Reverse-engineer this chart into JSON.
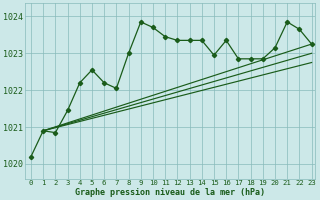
{
  "title": "Graphe pression niveau de la mer (hPa)",
  "bg_color": "#cce8e8",
  "grid_color": "#88bbbb",
  "line_color": "#1a5c1a",
  "x_min": 0,
  "x_max": 23,
  "y_min": 1019.6,
  "y_max": 1024.35,
  "yticks": [
    1020,
    1021,
    1022,
    1023,
    1024
  ],
  "xticks": [
    0,
    1,
    2,
    3,
    4,
    5,
    6,
    7,
    8,
    9,
    10,
    11,
    12,
    13,
    14,
    15,
    16,
    17,
    18,
    19,
    20,
    21,
    22,
    23
  ],
  "jagged_x": [
    0,
    1,
    2,
    3,
    4,
    5,
    6,
    7,
    8,
    9,
    10,
    11,
    12,
    13,
    14,
    15,
    16,
    17,
    18,
    19,
    20,
    21,
    22,
    23
  ],
  "jagged_y": [
    1020.2,
    1020.9,
    1020.85,
    1021.45,
    1022.2,
    1022.55,
    1022.2,
    1022.05,
    1023.0,
    1023.85,
    1023.7,
    1023.45,
    1023.35,
    1023.35,
    1023.35,
    1022.95,
    1023.35,
    1022.85,
    1022.85,
    1022.85,
    1023.15,
    1023.85,
    1023.65,
    1023.25
  ],
  "lin1_x0": 1,
  "lin1_y0": 1020.9,
  "lin1_x1": 23,
  "lin1_y1": 1023.25,
  "lin2_x0": 1,
  "lin2_y0": 1020.9,
  "lin2_x1": 23,
  "lin2_y1": 1023.0,
  "lin3_x0": 1,
  "lin3_y0": 1020.9,
  "lin3_x1": 23,
  "lin3_y1": 1022.75,
  "title_fontsize": 6.0,
  "xlabel_fontsize": 5.2,
  "ylabel_fontsize": 6.0
}
